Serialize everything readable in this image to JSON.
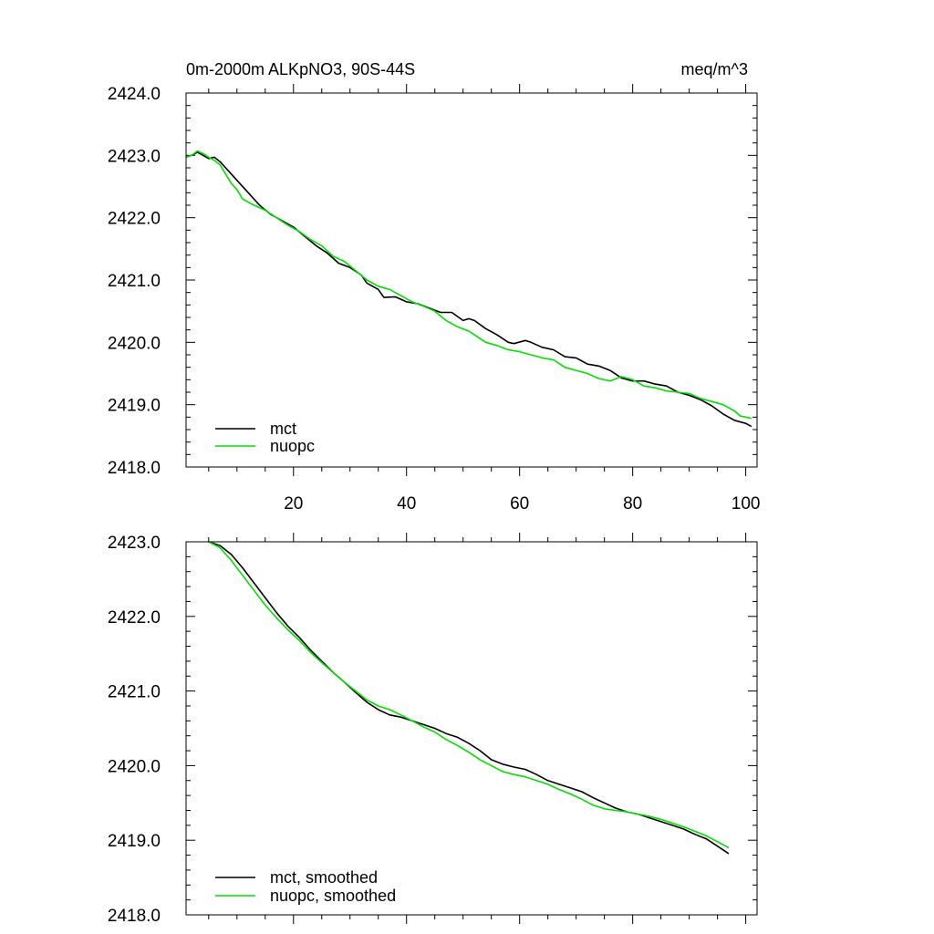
{
  "chart_data": [
    {
      "type": "line",
      "title": "0m-2000m ALKpNO3, 90S-44S",
      "units": "meq/m^3",
      "xlabel": "",
      "ylabel": "",
      "xlim": [
        1,
        102
      ],
      "ylim": [
        2418.0,
        2424.0
      ],
      "x_ticks": [
        20,
        40,
        60,
        80,
        100
      ],
      "y_ticks": [
        "2418.0",
        "2419.0",
        "2420.0",
        "2421.0",
        "2422.0",
        "2423.0",
        "2424.0"
      ],
      "legend_position": "bottom-left",
      "series": [
        {
          "name": "mct",
          "color": "#000000",
          "points": [
            [
              1,
              2422.97
            ],
            [
              2,
              2423.0
            ],
            [
              3,
              2423.05
            ],
            [
              4,
              2423.0
            ],
            [
              5,
              2422.95
            ],
            [
              6,
              2422.97
            ],
            [
              7,
              2422.9
            ],
            [
              8,
              2422.8
            ],
            [
              9,
              2422.7
            ],
            [
              10,
              2422.6
            ],
            [
              12,
              2422.4
            ],
            [
              14,
              2422.2
            ],
            [
              16,
              2422.05
            ],
            [
              18,
              2421.95
            ],
            [
              20,
              2421.85
            ],
            [
              22,
              2421.7
            ],
            [
              24,
              2421.55
            ],
            [
              26,
              2421.43
            ],
            [
              28,
              2421.27
            ],
            [
              30,
              2421.2
            ],
            [
              32,
              2421.08
            ],
            [
              33,
              2420.95
            ],
            [
              35,
              2420.85
            ],
            [
              36,
              2420.72
            ],
            [
              38,
              2420.73
            ],
            [
              40,
              2420.65
            ],
            [
              42,
              2420.62
            ],
            [
              44,
              2420.55
            ],
            [
              46,
              2420.48
            ],
            [
              48,
              2420.48
            ],
            [
              50,
              2420.35
            ],
            [
              51,
              2420.38
            ],
            [
              52,
              2420.35
            ],
            [
              54,
              2420.22
            ],
            [
              56,
              2420.12
            ],
            [
              58,
              2420.0
            ],
            [
              59,
              2419.98
            ],
            [
              61,
              2420.03
            ],
            [
              62,
              2420.0
            ],
            [
              64,
              2419.92
            ],
            [
              66,
              2419.88
            ],
            [
              68,
              2419.77
            ],
            [
              70,
              2419.75
            ],
            [
              72,
              2419.65
            ],
            [
              74,
              2419.62
            ],
            [
              76,
              2419.55
            ],
            [
              78,
              2419.43
            ],
            [
              80,
              2419.38
            ],
            [
              82,
              2419.38
            ],
            [
              84,
              2419.33
            ],
            [
              86,
              2419.3
            ],
            [
              88,
              2419.2
            ],
            [
              90,
              2419.15
            ],
            [
              92,
              2419.08
            ],
            [
              94,
              2418.98
            ],
            [
              96,
              2418.85
            ],
            [
              98,
              2418.75
            ],
            [
              100,
              2418.7
            ],
            [
              101,
              2418.65
            ]
          ]
        },
        {
          "name": "nuopc",
          "color": "#00e100",
          "points": [
            [
              1,
              2422.97
            ],
            [
              2,
              2423.0
            ],
            [
              3,
              2423.07
            ],
            [
              4,
              2423.03
            ],
            [
              5,
              2422.97
            ],
            [
              6,
              2422.92
            ],
            [
              7,
              2422.85
            ],
            [
              8,
              2422.7
            ],
            [
              9,
              2422.55
            ],
            [
              10,
              2422.45
            ],
            [
              11,
              2422.3
            ],
            [
              13,
              2422.2
            ],
            [
              15,
              2422.12
            ],
            [
              17,
              2422.0
            ],
            [
              19,
              2421.88
            ],
            [
              21,
              2421.78
            ],
            [
              23,
              2421.65
            ],
            [
              25,
              2421.55
            ],
            [
              27,
              2421.38
            ],
            [
              29,
              2421.3
            ],
            [
              31,
              2421.15
            ],
            [
              33,
              2421.0
            ],
            [
              35,
              2420.9
            ],
            [
              37,
              2420.85
            ],
            [
              39,
              2420.75
            ],
            [
              41,
              2420.65
            ],
            [
              43,
              2420.58
            ],
            [
              45,
              2420.5
            ],
            [
              47,
              2420.35
            ],
            [
              49,
              2420.25
            ],
            [
              51,
              2420.18
            ],
            [
              52,
              2420.12
            ],
            [
              54,
              2420.0
            ],
            [
              56,
              2419.95
            ],
            [
              58,
              2419.88
            ],
            [
              60,
              2419.85
            ],
            [
              62,
              2419.8
            ],
            [
              64,
              2419.75
            ],
            [
              66,
              2419.72
            ],
            [
              68,
              2419.6
            ],
            [
              70,
              2419.55
            ],
            [
              72,
              2419.5
            ],
            [
              74,
              2419.42
            ],
            [
              76,
              2419.38
            ],
            [
              78,
              2419.45
            ],
            [
              80,
              2419.4
            ],
            [
              82,
              2419.3
            ],
            [
              84,
              2419.27
            ],
            [
              86,
              2419.22
            ],
            [
              88,
              2419.2
            ],
            [
              90,
              2419.18
            ],
            [
              92,
              2419.1
            ],
            [
              94,
              2419.05
            ],
            [
              96,
              2419.0
            ],
            [
              98,
              2418.9
            ],
            [
              99,
              2418.82
            ],
            [
              101,
              2418.78
            ]
          ]
        }
      ]
    },
    {
      "type": "line",
      "title": "",
      "xlabel": "",
      "ylabel": "",
      "xlim": [
        1,
        102
      ],
      "ylim": [
        2418.0,
        2423.0
      ],
      "x_ticks": [
        20,
        40,
        60,
        80,
        100
      ],
      "x_tick_labels_shown": false,
      "y_ticks": [
        "2418.0",
        "2419.0",
        "2420.0",
        "2421.0",
        "2422.0",
        "2423.0"
      ],
      "legend_position": "bottom-left",
      "series": [
        {
          "name": "mct, smoothed",
          "color": "#000000",
          "points": [
            [
              5,
              2423.0
            ],
            [
              7,
              2422.95
            ],
            [
              9,
              2422.83
            ],
            [
              11,
              2422.65
            ],
            [
              13,
              2422.45
            ],
            [
              15,
              2422.25
            ],
            [
              17,
              2422.05
            ],
            [
              19,
              2421.87
            ],
            [
              21,
              2421.72
            ],
            [
              23,
              2421.55
            ],
            [
              25,
              2421.4
            ],
            [
              27,
              2421.25
            ],
            [
              29,
              2421.12
            ],
            [
              31,
              2420.98
            ],
            [
              33,
              2420.85
            ],
            [
              35,
              2420.75
            ],
            [
              37,
              2420.68
            ],
            [
              39,
              2420.65
            ],
            [
              41,
              2420.6
            ],
            [
              43,
              2420.55
            ],
            [
              45,
              2420.5
            ],
            [
              47,
              2420.43
            ],
            [
              49,
              2420.38
            ],
            [
              51,
              2420.3
            ],
            [
              53,
              2420.2
            ],
            [
              55,
              2420.08
            ],
            [
              57,
              2420.02
            ],
            [
              59,
              2419.98
            ],
            [
              61,
              2419.95
            ],
            [
              63,
              2419.88
            ],
            [
              65,
              2419.8
            ],
            [
              67,
              2419.75
            ],
            [
              69,
              2419.7
            ],
            [
              71,
              2419.65
            ],
            [
              73,
              2419.57
            ],
            [
              75,
              2419.5
            ],
            [
              77,
              2419.43
            ],
            [
              79,
              2419.38
            ],
            [
              81,
              2419.35
            ],
            [
              83,
              2419.3
            ],
            [
              85,
              2419.25
            ],
            [
              87,
              2419.2
            ],
            [
              89,
              2419.15
            ],
            [
              91,
              2419.08
            ],
            [
              93,
              2419.02
            ],
            [
              95,
              2418.92
            ],
            [
              97,
              2418.82
            ]
          ]
        },
        {
          "name": "nuopc, smoothed",
          "color": "#00e100",
          "points": [
            [
              5,
              2423.0
            ],
            [
              7,
              2422.92
            ],
            [
              9,
              2422.75
            ],
            [
              11,
              2422.55
            ],
            [
              13,
              2422.35
            ],
            [
              15,
              2422.15
            ],
            [
              17,
              2421.98
            ],
            [
              19,
              2421.82
            ],
            [
              21,
              2421.68
            ],
            [
              23,
              2421.52
            ],
            [
              25,
              2421.38
            ],
            [
              27,
              2421.25
            ],
            [
              29,
              2421.12
            ],
            [
              31,
              2421.0
            ],
            [
              33,
              2420.88
            ],
            [
              35,
              2420.8
            ],
            [
              37,
              2420.75
            ],
            [
              39,
              2420.68
            ],
            [
              41,
              2420.6
            ],
            [
              43,
              2420.52
            ],
            [
              45,
              2420.45
            ],
            [
              47,
              2420.35
            ],
            [
              49,
              2420.27
            ],
            [
              51,
              2420.18
            ],
            [
              53,
              2420.08
            ],
            [
              55,
              2420.0
            ],
            [
              57,
              2419.92
            ],
            [
              59,
              2419.88
            ],
            [
              61,
              2419.85
            ],
            [
              63,
              2419.8
            ],
            [
              65,
              2419.75
            ],
            [
              67,
              2419.68
            ],
            [
              69,
              2419.62
            ],
            [
              71,
              2419.55
            ],
            [
              73,
              2419.47
            ],
            [
              75,
              2419.42
            ],
            [
              77,
              2419.4
            ],
            [
              79,
              2419.38
            ],
            [
              81,
              2419.35
            ],
            [
              83,
              2419.32
            ],
            [
              85,
              2419.28
            ],
            [
              87,
              2419.23
            ],
            [
              89,
              2419.18
            ],
            [
              91,
              2419.12
            ],
            [
              93,
              2419.06
            ],
            [
              95,
              2418.98
            ],
            [
              97,
              2418.9
            ]
          ]
        }
      ]
    }
  ]
}
